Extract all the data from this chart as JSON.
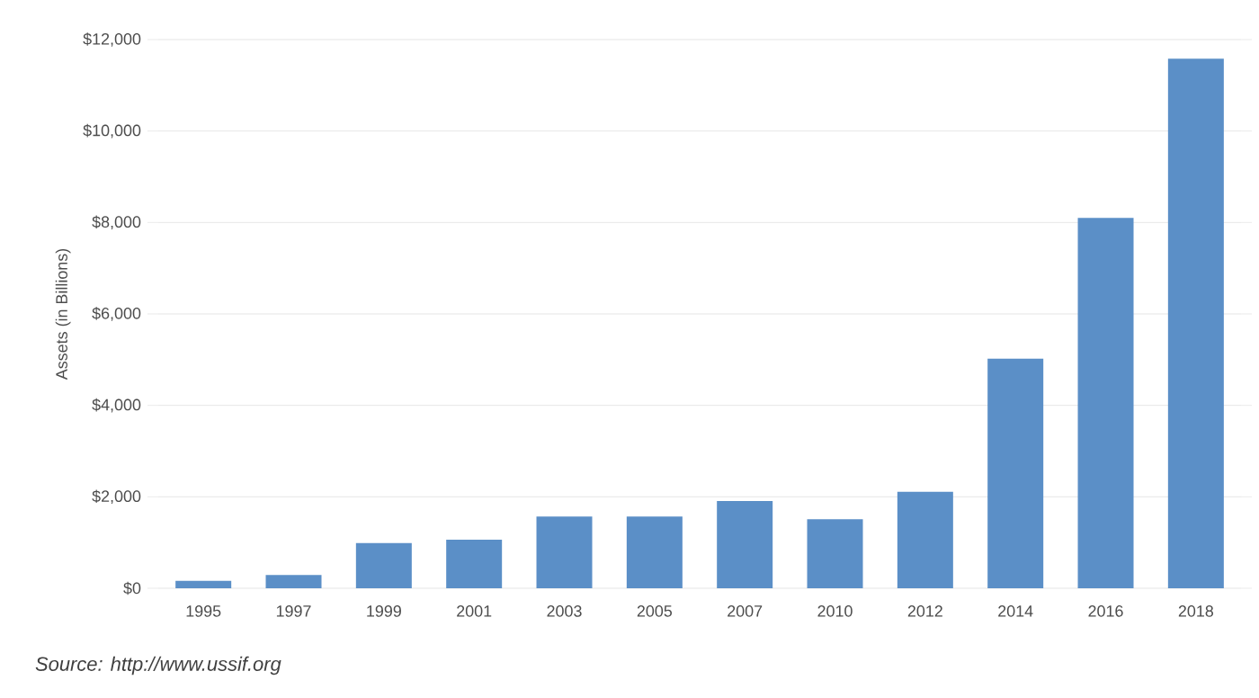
{
  "chart_data": {
    "type": "bar",
    "ylabel": "Assets (in Billions)",
    "categories": [
      "1995",
      "1997",
      "1999",
      "2001",
      "2003",
      "2005",
      "2007",
      "2010",
      "2012",
      "2014",
      "2016",
      "2018"
    ],
    "values": [
      160,
      290,
      990,
      1060,
      1570,
      1570,
      1910,
      1510,
      2110,
      5020,
      8100,
      11580
    ],
    "color": "#5b8fc7",
    "ylim": [
      0,
      12000
    ],
    "yticks": [
      {
        "value": 0,
        "label": "$0"
      },
      {
        "value": 2000,
        "label": "$2,000"
      },
      {
        "value": 4000,
        "label": "$4,000"
      },
      {
        "value": 6000,
        "label": "$6,000"
      },
      {
        "value": 8000,
        "label": "$8,000"
      },
      {
        "value": 10000,
        "label": "$10,000"
      },
      {
        "value": 12000,
        "label": "$12,000"
      }
    ],
    "grid": "y",
    "annotations": [
      "Source: http://www.ussif.org"
    ]
  }
}
